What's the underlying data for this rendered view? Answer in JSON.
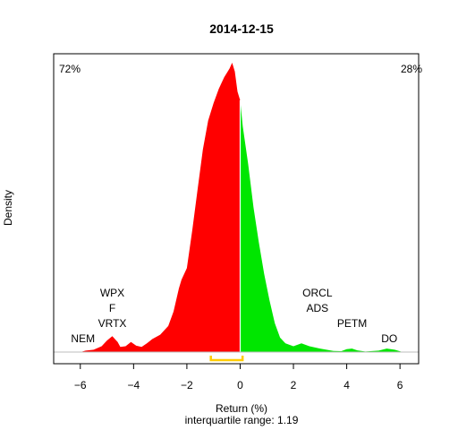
{
  "chart_data": {
    "type": "area",
    "title": "2014-12-15",
    "xlabel": "Return (%)",
    "ylabel": "Density",
    "subtitle": "interquartile range: 1.19",
    "xlim": [
      -7,
      6.7
    ],
    "ylim": [
      0,
      1
    ],
    "x_ticks": [
      -6,
      -4,
      -2,
      0,
      2,
      4,
      6
    ],
    "grid": false,
    "split_at": 0,
    "colors": {
      "negative": "#ff0000",
      "positive": "#00e600",
      "iqr": "#ffcc00",
      "baseline": "#bebebe"
    },
    "left_share": {
      "label": "72%",
      "color": "#ff0000"
    },
    "right_share": {
      "label": "28%",
      "color": "#008b00"
    },
    "iqr_range": [
      -1.1,
      0.09
    ],
    "density": [
      [
        -6.0,
        0.0
      ],
      [
        -5.8,
        0.005
      ],
      [
        -5.5,
        0.008
      ],
      [
        -5.2,
        0.02
      ],
      [
        -5.0,
        0.04
      ],
      [
        -4.8,
        0.055
      ],
      [
        -4.6,
        0.035
      ],
      [
        -4.5,
        0.018
      ],
      [
        -4.3,
        0.02
      ],
      [
        -4.1,
        0.035
      ],
      [
        -3.9,
        0.022
      ],
      [
        -3.7,
        0.018
      ],
      [
        -3.5,
        0.03
      ],
      [
        -3.3,
        0.045
      ],
      [
        -3.0,
        0.06
      ],
      [
        -2.7,
        0.09
      ],
      [
        -2.5,
        0.14
      ],
      [
        -2.3,
        0.22
      ],
      [
        -2.2,
        0.25
      ],
      [
        -2.0,
        0.29
      ],
      [
        -1.8,
        0.42
      ],
      [
        -1.6,
        0.56
      ],
      [
        -1.4,
        0.7
      ],
      [
        -1.2,
        0.8
      ],
      [
        -1.0,
        0.86
      ],
      [
        -0.8,
        0.91
      ],
      [
        -0.6,
        0.95
      ],
      [
        -0.4,
        0.98
      ],
      [
        -0.3,
        1.0
      ],
      [
        -0.2,
        0.97
      ],
      [
        -0.1,
        0.9
      ],
      [
        0.0,
        0.87
      ],
      [
        0.1,
        0.78
      ],
      [
        0.3,
        0.65
      ],
      [
        0.5,
        0.5
      ],
      [
        0.7,
        0.38
      ],
      [
        0.9,
        0.27
      ],
      [
        1.1,
        0.18
      ],
      [
        1.3,
        0.1
      ],
      [
        1.5,
        0.05
      ],
      [
        1.7,
        0.03
      ],
      [
        2.0,
        0.02
      ],
      [
        2.3,
        0.03
      ],
      [
        2.6,
        0.02
      ],
      [
        3.0,
        0.012
      ],
      [
        3.5,
        0.004
      ],
      [
        3.8,
        0.003
      ],
      [
        4.0,
        0.01
      ],
      [
        4.2,
        0.012
      ],
      [
        4.4,
        0.006
      ],
      [
        4.7,
        0.002
      ],
      [
        5.2,
        0.005
      ],
      [
        5.5,
        0.012
      ],
      [
        5.8,
        0.008
      ],
      [
        6.1,
        0.0
      ]
    ],
    "annotations": [
      {
        "text": "NEM",
        "x": -5.9,
        "row": 0
      },
      {
        "text": "VRTX",
        "x": -4.8,
        "row": 1
      },
      {
        "text": "F",
        "x": -4.8,
        "row": 2
      },
      {
        "text": "WPX",
        "x": -4.8,
        "row": 3
      },
      {
        "text": "ORCL",
        "x": 2.9,
        "row": 3
      },
      {
        "text": "ADS",
        "x": 2.9,
        "row": 2
      },
      {
        "text": "PETM",
        "x": 4.2,
        "row": 1
      },
      {
        "text": "DO",
        "x": 5.6,
        "row": 0
      }
    ]
  }
}
